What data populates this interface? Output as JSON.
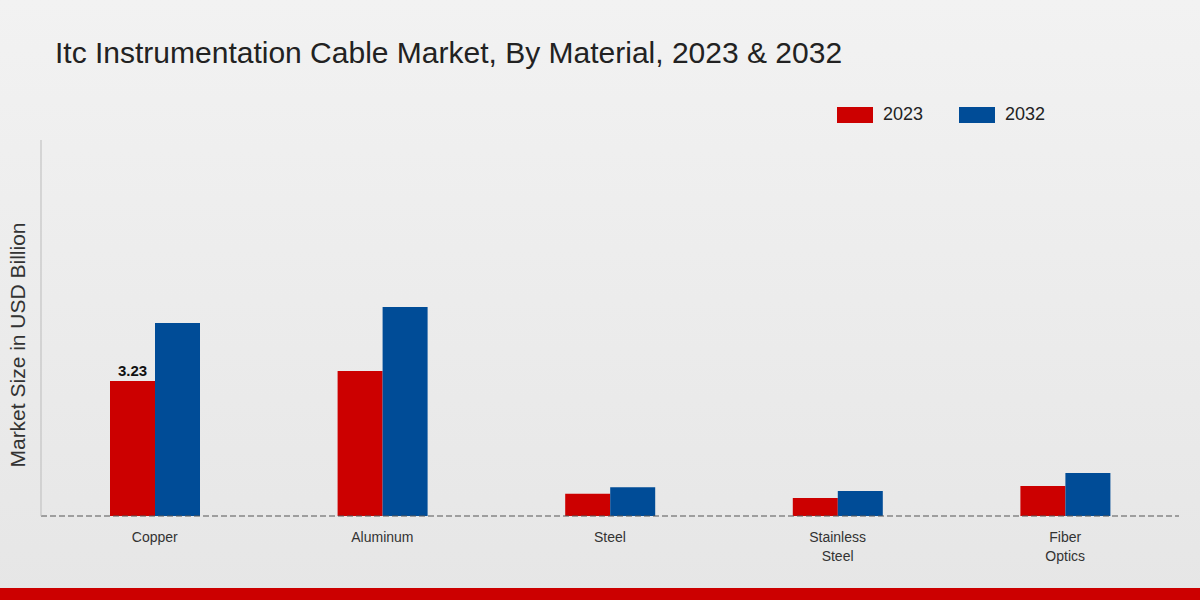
{
  "chart_data": {
    "type": "bar",
    "title": "Itc Instrumentation Cable Market, By Material, 2023 & 2032",
    "y_label": "Market Size in USD Billion",
    "categories": [
      "Copper",
      "Aluminum",
      "Steel",
      "Stainless Steel",
      "Fiber Optics"
    ],
    "series": [
      {
        "name": "2023",
        "color": "#cc0000",
        "values": [
          3.23,
          3.47,
          0.53,
          0.43,
          0.72
        ],
        "value_labels": [
          "3.23",
          null,
          null,
          null,
          null
        ]
      },
      {
        "name": "2032",
        "color": "#004c97",
        "values": [
          4.62,
          5.0,
          0.69,
          0.6,
          1.03
        ]
      }
    ],
    "ylim": [
      0,
      9
    ],
    "grid": false,
    "legend": "top right",
    "tick_labels": "x"
  }
}
